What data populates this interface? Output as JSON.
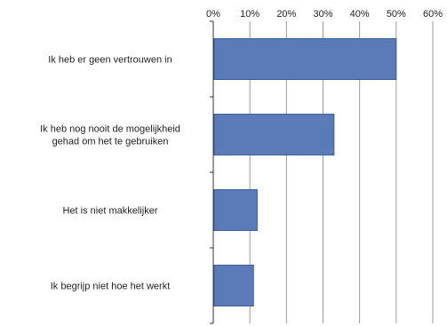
{
  "chart_data": {
    "type": "bar",
    "orientation": "horizontal",
    "title": "",
    "xlabel": "",
    "ylabel": "",
    "xlim": [
      0,
      60
    ],
    "x_ticks": [
      "0%",
      "10%",
      "20%",
      "30%",
      "40%",
      "50%",
      "60%"
    ],
    "x_axis_position": "top",
    "grid": true,
    "legend": "none",
    "bar_color": "#5a7ab8",
    "categories": [
      [
        "Ik heb er geen vertrouwen in"
      ],
      [
        "Ik heb nog nooit de mogelijkheid",
        "gehad om het te gebruiken"
      ],
      [
        "Het is niet makkelijker"
      ],
      [
        "Ik begrijp niet hoe het werkt"
      ]
    ],
    "values": [
      50,
      33,
      12,
      11
    ]
  }
}
